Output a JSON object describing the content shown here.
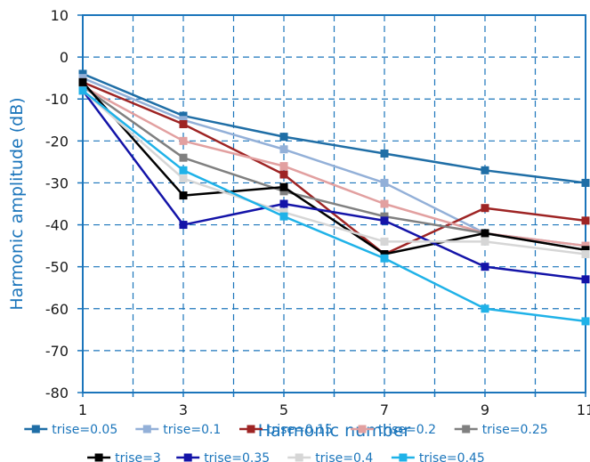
{
  "chart_data": {
    "type": "line",
    "xlabel": "Harmonic number",
    "ylabel": "Harmonic amplitude (dB)",
    "x": [
      1,
      3,
      5,
      7,
      9,
      11
    ],
    "xlim": [
      1,
      11
    ],
    "ylim": [
      -80,
      10
    ],
    "x_ticks": [
      "1",
      "3",
      "5",
      "7",
      "9",
      "11"
    ],
    "y_ticks": [
      "10",
      "0",
      "-10",
      "-20",
      "-30",
      "-40",
      "-50",
      "-60",
      "-70",
      "-80"
    ],
    "grid": true,
    "legend_position": "bottom",
    "series": [
      {
        "name": "trise=0.05",
        "color": "#1f6ea6",
        "values": [
          -4,
          -14,
          -19,
          -23,
          -27,
          -30
        ]
      },
      {
        "name": "trise=0.1",
        "color": "#93b0d8",
        "values": [
          -5,
          -15,
          -22,
          -30,
          -42,
          -45
        ]
      },
      {
        "name": "trise=0.15",
        "color": "#9e2424",
        "values": [
          -6,
          -16,
          -28,
          -47,
          -36,
          -39
        ]
      },
      {
        "name": "trise=0.2",
        "color": "#e2a0a0",
        "values": [
          -7,
          -20,
          -26,
          -35,
          -42,
          -45
        ]
      },
      {
        "name": "trise=0.25",
        "color": "#808080",
        "values": [
          -7,
          -24,
          -32,
          -38,
          -42,
          -46
        ]
      },
      {
        "name": "trise=3",
        "color": "#000000",
        "values": [
          -6,
          -33,
          -31,
          -47,
          -42,
          -46
        ]
      },
      {
        "name": "trise=0.35",
        "color": "#1414a8",
        "values": [
          -8,
          -40,
          -35,
          -39,
          -50,
          -53
        ]
      },
      {
        "name": "trise=0.4",
        "color": "#d6d6d6",
        "values": [
          -8,
          -29,
          -37,
          -44,
          -44,
          -47
        ]
      },
      {
        "name": "trise=0.45",
        "color": "#1fb2e8",
        "values": [
          -8,
          -27,
          -38,
          -48,
          -60,
          -63
        ]
      }
    ]
  }
}
